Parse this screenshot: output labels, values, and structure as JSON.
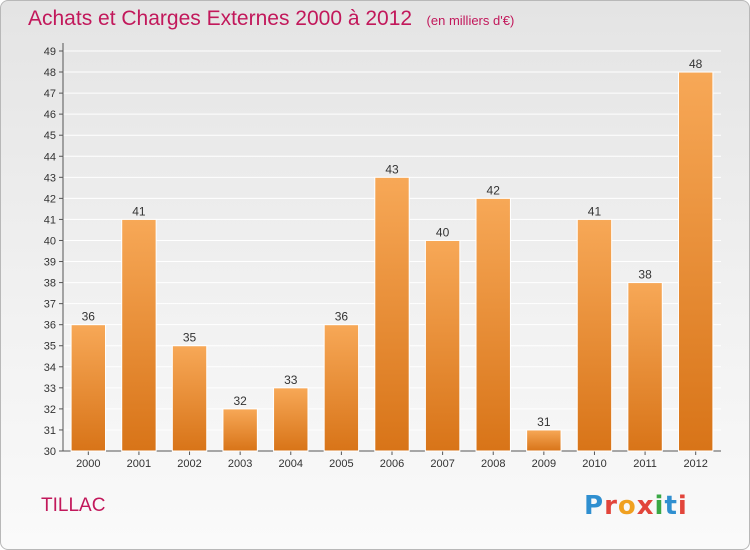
{
  "header": {
    "title": "Achats et Charges Externes 2000 à 2012",
    "unit": "(en milliers d'€)"
  },
  "footer": {
    "commune": "TILLAC",
    "logo_text": "Proxiti",
    "logo_colors": [
      "#2f8fd0",
      "#e2453b",
      "#f0a020",
      "#e2453b",
      "#3aa845",
      "#2f8fd0",
      "#e2453b"
    ]
  },
  "colors": {
    "bar_top": "#f7a857",
    "bar_bottom": "#d87418",
    "bar_edge": "#ffffff",
    "title": "#c2185b",
    "grid": "#ffffff",
    "axis": "#555555"
  },
  "chart_data": {
    "type": "bar",
    "title": "Achats et Charges Externes 2000 à 2012",
    "subtitle": "(en milliers d'€)",
    "xlabel": "",
    "ylabel": "",
    "categories": [
      "2000",
      "2001",
      "2002",
      "2003",
      "2004",
      "2005",
      "2006",
      "2007",
      "2008",
      "2009",
      "2010",
      "2011",
      "2012"
    ],
    "values": [
      36,
      41,
      35,
      32,
      33,
      36,
      43,
      40,
      42,
      31,
      41,
      38,
      48
    ],
    "ylim": [
      30,
      49
    ],
    "yticks": [
      30,
      31,
      32,
      33,
      34,
      35,
      36,
      37,
      38,
      39,
      40,
      41,
      42,
      43,
      44,
      45,
      46,
      47,
      48,
      49
    ],
    "grid": true,
    "legend": "none"
  }
}
